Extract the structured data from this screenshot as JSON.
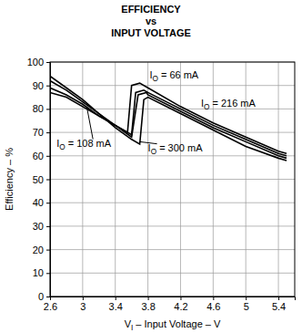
{
  "chart_data": {
    "type": "line",
    "title": "EFFICIENCY\nvs\nINPUT VOLTAGE",
    "x_label": "VI – Input Voltage – V",
    "y_label": "Efficiency – %",
    "xlim": [
      2.6,
      5.6
    ],
    "xticks": [
      2.6,
      3,
      3.4,
      3.8,
      4.2,
      4.6,
      5,
      5.4
    ],
    "ylim": [
      0,
      100
    ],
    "yticks": [
      0,
      10,
      20,
      30,
      40,
      50,
      60,
      70,
      80,
      90,
      100
    ],
    "grid": true,
    "series": [
      {
        "name": "IO = 66 mA",
        "color": "#000000",
        "x": [
          2.6,
          2.8,
          3.0,
          3.2,
          3.4,
          3.55,
          3.6,
          3.7,
          3.8,
          4.2,
          4.6,
          5.0,
          5.4,
          5.5
        ],
        "values": [
          87,
          85,
          81,
          77,
          73,
          70,
          90,
          91,
          89,
          81,
          74,
          68,
          62,
          61
        ]
      },
      {
        "name": "IO = 108 mA",
        "color": "#000000",
        "x": [
          2.6,
          2.8,
          3.0,
          3.2,
          3.4,
          3.6,
          3.65,
          3.75,
          3.8,
          4.2,
          4.6,
          5.0,
          5.4,
          5.5
        ],
        "values": [
          89,
          86,
          82,
          77,
          73,
          69,
          87,
          88,
          87,
          80,
          73,
          67,
          61,
          60
        ]
      },
      {
        "name": "IO = 216 mA",
        "color": "#000000",
        "x": [
          2.6,
          2.8,
          3.0,
          3.2,
          3.4,
          3.6,
          3.68,
          3.78,
          3.8,
          4.2,
          4.6,
          5.0,
          5.4,
          5.5
        ],
        "values": [
          92,
          88,
          83,
          78,
          73,
          68,
          86,
          87,
          86,
          79,
          72,
          66,
          60,
          59
        ]
      },
      {
        "name": "IO = 300 mA",
        "color": "#000000",
        "x": [
          2.6,
          2.8,
          3.0,
          3.2,
          3.4,
          3.6,
          3.7,
          3.75,
          3.8,
          4.2,
          4.6,
          5.0,
          5.4,
          5.5
        ],
        "values": [
          94,
          89,
          84,
          78,
          72,
          67,
          65,
          84,
          85,
          78,
          71,
          64,
          59,
          58
        ]
      }
    ]
  }
}
